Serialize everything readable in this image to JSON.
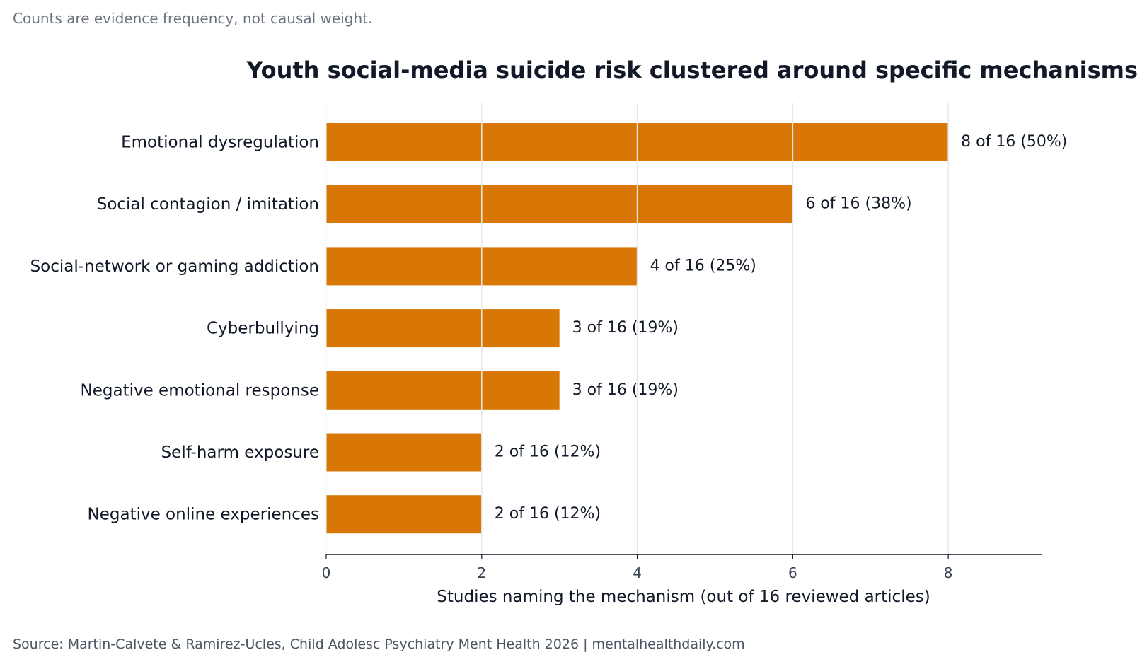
{
  "note": "Counts are evidence frequency, not causal weight.",
  "source": "Source: Martin-Calvete & Ramirez-Ucles, Child Adolesc Psychiatry Ment Health 2026 | mentalhealthdaily.com",
  "chart_data": {
    "type": "bar",
    "orientation": "horizontal",
    "title": "Youth social-media suicide risk clustered around specific mechanisms",
    "xlabel": "Studies naming the mechanism (out of 16 reviewed articles)",
    "ylabel": "",
    "categories": [
      "Emotional dysregulation",
      "Social contagion / imitation",
      "Social-network or gaming addiction",
      "Cyberbullying",
      "Negative emotional response",
      "Self-harm exposure",
      "Negative online experiences"
    ],
    "values": [
      8,
      6,
      4,
      3,
      3,
      2,
      2
    ],
    "value_labels": [
      "8 of 16 (50%)",
      "6 of 16 (38%)",
      "4 of 16 (25%)",
      "3 of 16 (19%)",
      "3 of 16 (19%)",
      "2 of 16 (12%)",
      "2 of 16 (12%)"
    ],
    "xticks": [
      "0",
      "2",
      "4",
      "6",
      "8"
    ],
    "xlim": [
      0,
      9.2
    ],
    "grid": "vertical",
    "bar_color": "#d97706",
    "grid_color": "#e5e7eb"
  }
}
